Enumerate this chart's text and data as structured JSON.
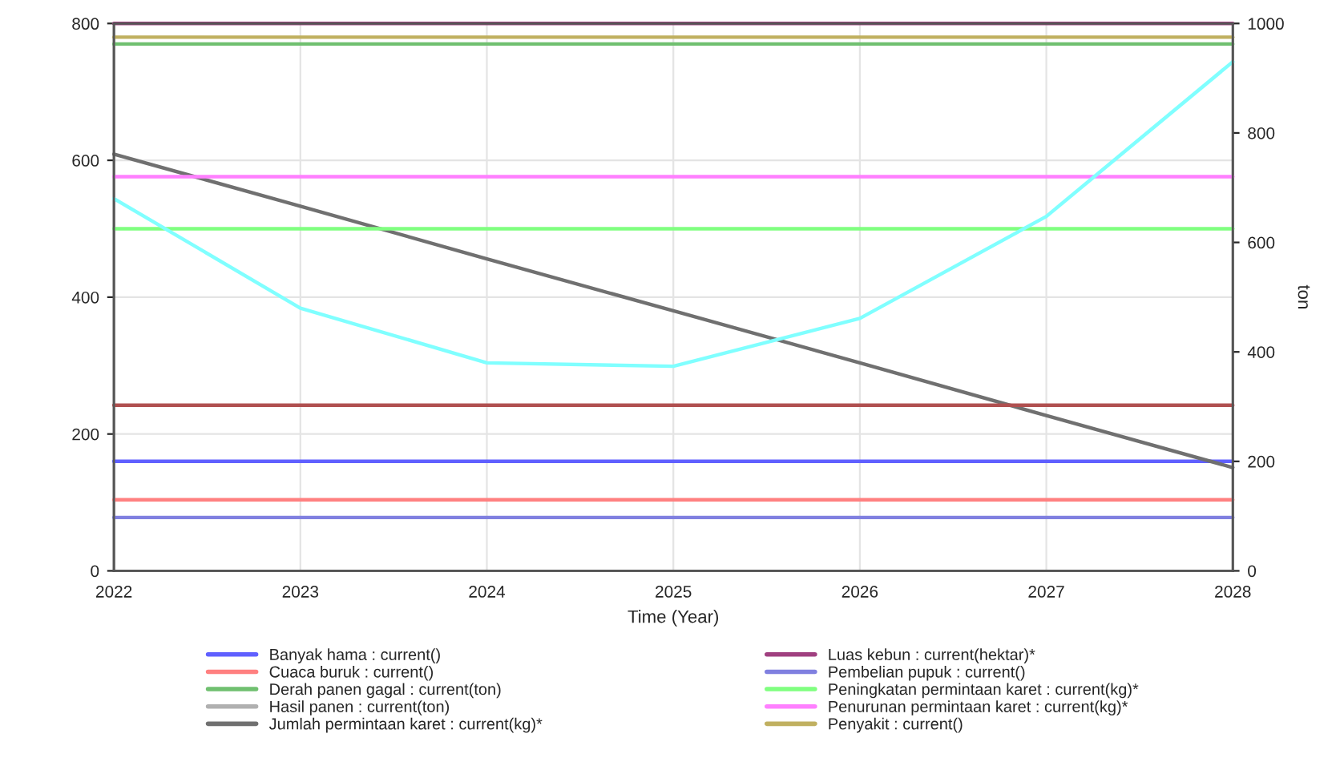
{
  "chart_data": {
    "type": "line",
    "xlabel": "Time (Year)",
    "y2label": "ton",
    "x": [
      2022,
      2023,
      2024,
      2025,
      2026,
      2027,
      2028
    ],
    "xlim": [
      2022,
      2028
    ],
    "xticks": [
      2022,
      2023,
      2024,
      2025,
      2026,
      2027,
      2028
    ],
    "ylim": [
      0,
      800
    ],
    "yticks": [
      0,
      200,
      400,
      600,
      800
    ],
    "y2lim": [
      0,
      1000
    ],
    "y2ticks": [
      0,
      200,
      400,
      600,
      800,
      1000
    ],
    "grid": true,
    "legend": "bottom",
    "line_style": "solid",
    "marker": "none",
    "series": [
      {
        "name": "Banyak hama : current()",
        "color": "#6060ff",
        "values": [
          160,
          160,
          160,
          160,
          160,
          160,
          160
        ]
      },
      {
        "name": "Cuaca buruk : current()",
        "color": "#ff8080",
        "values": [
          104,
          104,
          104,
          104,
          104,
          104,
          104
        ]
      },
      {
        "name": "Derah panen gagal : current(ton)",
        "color": "#70c070",
        "values": [
          770,
          770,
          770,
          770,
          770,
          770,
          770
        ]
      },
      {
        "name": "Hasil panen : current(ton)",
        "color": "#b0b0b0",
        "values": [
          null,
          null,
          null,
          null,
          null,
          null,
          null
        ]
      },
      {
        "name": "Jumlah permintaan karet : current(kg)*",
        "color": "#707070",
        "values": [
          609,
          533,
          456,
          380,
          304,
          227,
          151
        ]
      },
      {
        "name": "Luas kebun : current(hektar)*",
        "color": "#a04080",
        "values": [
          800,
          800,
          800,
          800,
          800,
          800,
          800
        ]
      },
      {
        "name": "Pembelian pupuk : current()",
        "color": "#8080e0",
        "values": [
          78,
          78,
          78,
          78,
          78,
          78,
          78
        ]
      },
      {
        "name": "Peningkatan permintaan karet : current(kg)*",
        "color": "#80ff80",
        "values": [
          500,
          500,
          500,
          500,
          500,
          500,
          500
        ]
      },
      {
        "name": "Penurunan permintaan karet : current(kg)*",
        "color": "#ff80ff",
        "values": [
          576,
          576,
          576,
          576,
          576,
          576,
          576
        ]
      },
      {
        "name": "Penyakit : current()",
        "color": "#c0b060",
        "values": [
          780,
          780,
          780,
          780,
          780,
          780,
          780
        ]
      },
      {
        "color": "#b05050",
        "values": [
          242,
          242,
          242,
          242,
          242,
          242,
          242
        ]
      },
      {
        "color": "#80ffff",
        "values": [
          544,
          384,
          304,
          299,
          369,
          518,
          744
        ]
      }
    ]
  }
}
